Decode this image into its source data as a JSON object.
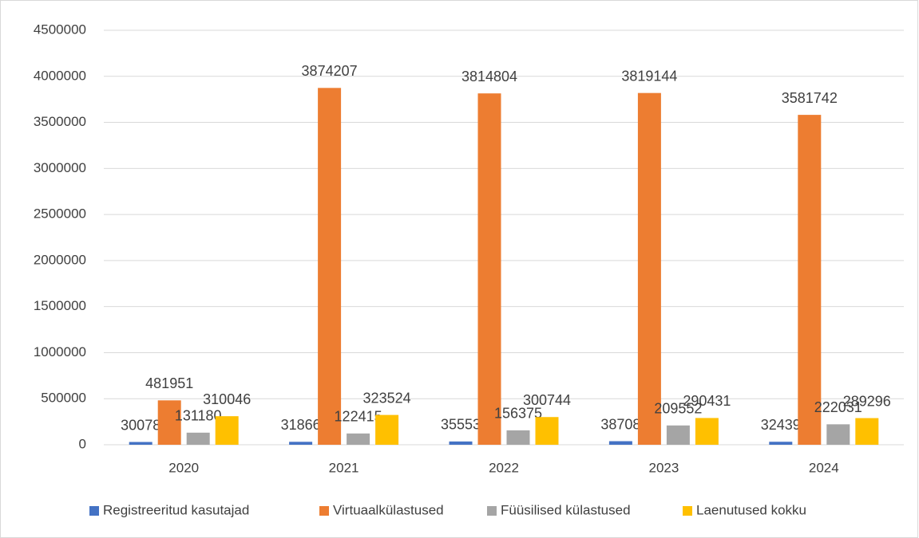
{
  "chart_data": {
    "type": "bar",
    "categories": [
      "2020",
      "2021",
      "2022",
      "2023",
      "2024"
    ],
    "series": [
      {
        "name": "Registreeritud kasutajad",
        "color": "#4472c4",
        "values": [
          30078,
          31866,
          35553,
          38708,
          32439
        ]
      },
      {
        "name": "Virtuaalkülastused",
        "color": "#ed7d31",
        "values": [
          481951,
          3874207,
          3814804,
          3819144,
          3581742
        ]
      },
      {
        "name": "Füüsilised külastused",
        "color": "#a5a5a5",
        "values": [
          131180,
          122415,
          156375,
          209552,
          222031
        ]
      },
      {
        "name": "Laenutused kokku",
        "color": "#ffc000",
        "values": [
          310046,
          323524,
          300744,
          290431,
          289296
        ]
      }
    ],
    "ylim": [
      0,
      4500000
    ],
    "yticks": [
      0,
      500000,
      1000000,
      1500000,
      2000000,
      2500000,
      3000000,
      3500000,
      4000000,
      4500000
    ],
    "grid": true,
    "legend": "bottom"
  }
}
